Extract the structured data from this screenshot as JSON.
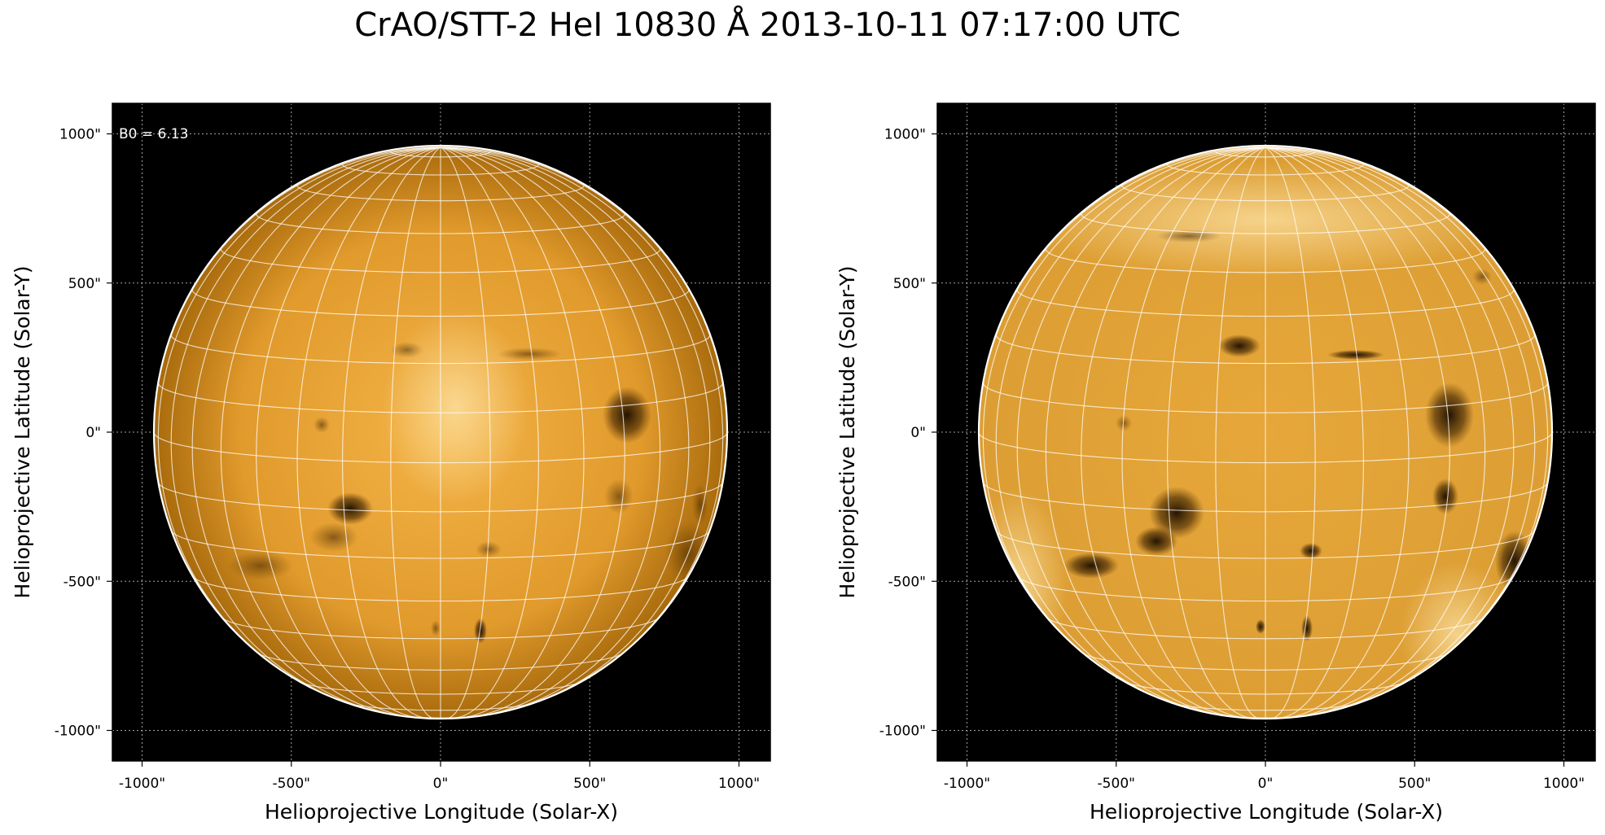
{
  "figure": {
    "title": "CrAO/STT-2 HeI 10830 Å 2013-10-11 07:17:00 UTC"
  },
  "colors": {
    "disk_left_center": "#f3b347",
    "disk_left_edge": "#a86a0c",
    "disk_right_center": "#e7a73a",
    "disk_right_edge": "#d89a30",
    "background": "#000000",
    "grid": "#ffffff"
  },
  "panels": [
    {
      "id": "left",
      "annotation": "B0 = 6.13",
      "xlabel": "Helioprojective Longitude (Solar-X)",
      "ylabel": "Helioprojective Latitude (Solar-Y)",
      "xticks": [
        "-1000\"",
        "-500\"",
        "0\"",
        "500\"",
        "1000\""
      ],
      "yticks": [
        "1000\"",
        "500\"",
        "0\"",
        "-500\"",
        "-1000\""
      ]
    },
    {
      "id": "right",
      "annotation": "",
      "xlabel": "Helioprojective Longitude (Solar-X)",
      "ylabel": "Helioprojective Latitude (Solar-Y)",
      "xticks": [
        "-1000\"",
        "-500\"",
        "0\"",
        "500\"",
        "1000\""
      ],
      "yticks": [
        "1000\"",
        "500\"",
        "0\"",
        "-500\"",
        "-1000\""
      ]
    }
  ]
}
